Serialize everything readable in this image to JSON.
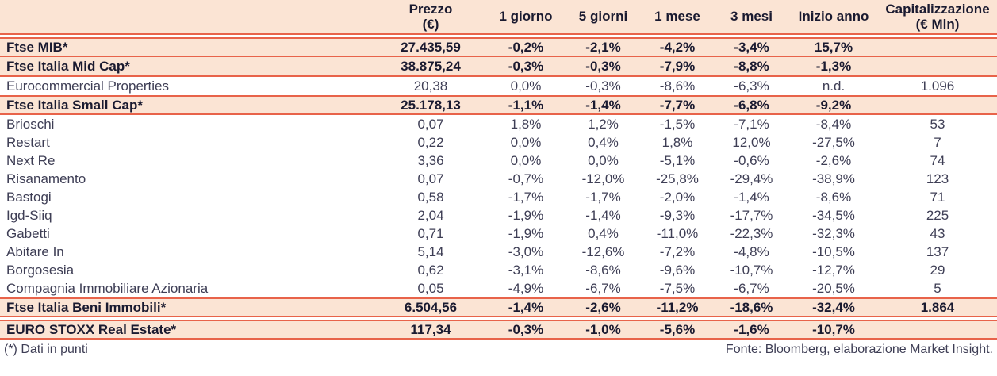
{
  "colors": {
    "highlight_bg": "#fbe4d4",
    "rule": "#e8634a",
    "text_dark": "#1a1a30",
    "text_normal": "#3e3e55"
  },
  "chart_data": {
    "type": "table",
    "title": "",
    "columns": [
      {
        "id": "name",
        "label": "",
        "sublabel": ""
      },
      {
        "id": "prezzo",
        "label": "Prezzo",
        "sublabel": "(€)"
      },
      {
        "id": "g1",
        "label": "1 giorno",
        "sublabel": ""
      },
      {
        "id": "g5",
        "label": "5 giorni",
        "sublabel": ""
      },
      {
        "id": "m1",
        "label": "1 mese",
        "sublabel": ""
      },
      {
        "id": "m3",
        "label": "3 mesi",
        "sublabel": ""
      },
      {
        "id": "inizio",
        "label": "Inizio anno",
        "sublabel": ""
      },
      {
        "id": "cap",
        "label": "Capitalizzazione",
        "sublabel": "(€ Mln)"
      }
    ],
    "rows": [
      {
        "name": "Ftse MIB*",
        "type": "index",
        "gap_before": true,
        "borders": "tb",
        "values": [
          "27.435,59",
          "-0,2%",
          "-2,1%",
          "-4,2%",
          "-3,4%",
          "15,7%",
          ""
        ]
      },
      {
        "name": "Ftse Italia Mid Cap*",
        "type": "index",
        "gap_before": false,
        "borders": "b",
        "values": [
          "38.875,24",
          "-0,3%",
          "-0,3%",
          "-7,9%",
          "-8,8%",
          "-1,3%",
          ""
        ]
      },
      {
        "name": "Eurocommercial Properties",
        "type": "stock",
        "gap_before": false,
        "borders": "",
        "values": [
          "20,38",
          "0,0%",
          "-0,3%",
          "-8,6%",
          "-6,3%",
          "n.d.",
          "1.096"
        ]
      },
      {
        "name": "Ftse Italia Small Cap*",
        "type": "index",
        "gap_before": false,
        "borders": "tb",
        "values": [
          "25.178,13",
          "-1,1%",
          "-1,4%",
          "-7,7%",
          "-6,8%",
          "-9,2%",
          ""
        ]
      },
      {
        "name": "Brioschi",
        "type": "stock",
        "gap_before": false,
        "borders": "",
        "values": [
          "0,07",
          "1,8%",
          "1,2%",
          "-1,5%",
          "-7,1%",
          "-8,4%",
          "53"
        ]
      },
      {
        "name": "Restart",
        "type": "stock",
        "gap_before": false,
        "borders": "",
        "values": [
          "0,22",
          "0,0%",
          "0,4%",
          "1,8%",
          "12,0%",
          "-27,5%",
          "7"
        ]
      },
      {
        "name": "Next Re",
        "type": "stock",
        "gap_before": false,
        "borders": "",
        "values": [
          "3,36",
          "0,0%",
          "0,0%",
          "-5,1%",
          "-0,6%",
          "-2,6%",
          "74"
        ]
      },
      {
        "name": "Risanamento",
        "type": "stock",
        "gap_before": false,
        "borders": "",
        "values": [
          "0,07",
          "-0,7%",
          "-12,0%",
          "-25,8%",
          "-29,4%",
          "-38,9%",
          "123"
        ]
      },
      {
        "name": "Bastogi",
        "type": "stock",
        "gap_before": false,
        "borders": "",
        "values": [
          "0,58",
          "-1,7%",
          "-1,7%",
          "-2,0%",
          "-1,4%",
          "-8,6%",
          "71"
        ]
      },
      {
        "name": "Igd-Siiq",
        "type": "stock",
        "gap_before": false,
        "borders": "",
        "values": [
          "2,04",
          "-1,9%",
          "-1,4%",
          "-9,3%",
          "-17,7%",
          "-34,5%",
          "225"
        ]
      },
      {
        "name": "Gabetti",
        "type": "stock",
        "gap_before": false,
        "borders": "",
        "values": [
          "0,71",
          "-1,9%",
          "0,4%",
          "-11,0%",
          "-22,3%",
          "-32,3%",
          "43"
        ]
      },
      {
        "name": "Abitare In",
        "type": "stock",
        "gap_before": false,
        "borders": "",
        "values": [
          "5,14",
          "-3,0%",
          "-12,6%",
          "-7,2%",
          "-4,8%",
          "-10,5%",
          "137"
        ]
      },
      {
        "name": "Borgosesia",
        "type": "stock",
        "gap_before": false,
        "borders": "",
        "values": [
          "0,62",
          "-3,1%",
          "-8,6%",
          "-9,6%",
          "-10,7%",
          "-12,7%",
          "29"
        ]
      },
      {
        "name": "Compagnia Immobiliare Azionaria",
        "type": "stock",
        "gap_before": false,
        "borders": "",
        "values": [
          "0,05",
          "-4,9%",
          "-6,7%",
          "-7,5%",
          "-6,7%",
          "-20,5%",
          "5"
        ]
      },
      {
        "name": "Ftse Italia Beni Immobili*",
        "type": "index",
        "gap_before": false,
        "borders": "tb",
        "values": [
          "6.504,56",
          "-1,4%",
          "-2,6%",
          "-11,2%",
          "-18,6%",
          "-32,4%",
          "1.864"
        ]
      },
      {
        "name": "EURO STOXX Real Estate*",
        "type": "index",
        "gap_before": true,
        "borders": "tb",
        "values": [
          "117,34",
          "-0,3%",
          "-1,0%",
          "-5,6%",
          "-1,6%",
          "-10,7%",
          ""
        ]
      }
    ]
  },
  "footer": {
    "note": "(*) Dati in punti",
    "source": "Fonte: Bloomberg, elaborazione Market Insight."
  }
}
